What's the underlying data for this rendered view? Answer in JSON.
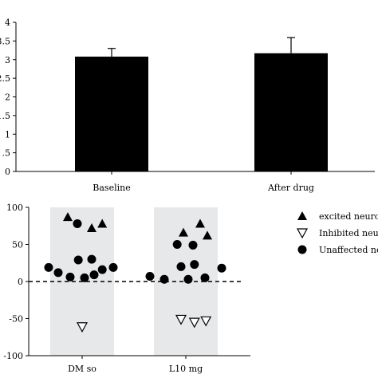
{
  "chart_data": [
    {
      "type": "bar",
      "title": "",
      "xlabel": "",
      "ylabel": "",
      "categories": [
        "Baseline",
        "After drug"
      ],
      "values": [
        3.08,
        3.17
      ],
      "errors": [
        0.22,
        0.42
      ],
      "ylim": [
        0,
        4
      ],
      "yticks": [
        0,
        0.5,
        1,
        1.5,
        2,
        2.5,
        3,
        3.5,
        4
      ],
      "ytick_labels": [
        "0",
        ".5",
        "1",
        "1.5",
        "2",
        "2.5",
        "3",
        "3.5",
        "4"
      ],
      "bar_color": "#000000",
      "grid": false
    },
    {
      "type": "scatter",
      "title": "",
      "xlabel": "",
      "ylabel": "",
      "categories": [
        "DM so",
        "L10 mg"
      ],
      "ylim": [
        -100,
        100
      ],
      "yticks": [
        -100,
        -50,
        0,
        50,
        100
      ],
      "ytick_labels": [
        "-100",
        "-50",
        "0",
        "50",
        "100"
      ],
      "zero_line": "dashed",
      "band_color": "#e6e8ea",
      "legend_position": "right",
      "legend": [
        {
          "label": "excited neuron",
          "marker": "filled-triangle"
        },
        {
          "label": "Inhibited neuro",
          "marker": "open-triangle-down"
        },
        {
          "label": "Unaffected neu",
          "marker": "filled-circle"
        }
      ],
      "series": [
        {
          "marker": "filled-triangle",
          "points": [
            {
              "category": 0,
              "offset": -0.3,
              "y": 87
            },
            {
              "category": 0,
              "offset": 0.2,
              "y": 72
            },
            {
              "category": 0,
              "offset": 0.42,
              "y": 78
            },
            {
              "category": 1,
              "offset": -0.05,
              "y": 66
            },
            {
              "category": 1,
              "offset": 0.3,
              "y": 78
            },
            {
              "category": 1,
              "offset": 0.45,
              "y": 62
            }
          ]
        },
        {
          "marker": "open-triangle-down",
          "points": [
            {
              "category": 0,
              "offset": 0.0,
              "y": -61
            },
            {
              "category": 1,
              "offset": -0.1,
              "y": -51
            },
            {
              "category": 1,
              "offset": 0.18,
              "y": -55
            },
            {
              "category": 1,
              "offset": 0.42,
              "y": -53
            }
          ]
        },
        {
          "marker": "filled-circle",
          "points": [
            {
              "category": 0,
              "offset": -0.7,
              "y": 19
            },
            {
              "category": 0,
              "offset": -0.5,
              "y": 12
            },
            {
              "category": 0,
              "offset": -0.25,
              "y": 6
            },
            {
              "category": 0,
              "offset": -0.1,
              "y": 78
            },
            {
              "category": 0,
              "offset": -0.08,
              "y": 29
            },
            {
              "category": 0,
              "offset": 0.05,
              "y": 5
            },
            {
              "category": 0,
              "offset": 0.2,
              "y": 30
            },
            {
              "category": 0,
              "offset": 0.25,
              "y": 9
            },
            {
              "category": 0,
              "offset": 0.42,
              "y": 16
            },
            {
              "category": 0,
              "offset": 0.65,
              "y": 19
            },
            {
              "category": 1,
              "offset": -0.75,
              "y": 7
            },
            {
              "category": 1,
              "offset": -0.45,
              "y": 3
            },
            {
              "category": 1,
              "offset": -0.18,
              "y": 50
            },
            {
              "category": 1,
              "offset": -0.1,
              "y": 20
            },
            {
              "category": 1,
              "offset": 0.05,
              "y": 3
            },
            {
              "category": 1,
              "offset": 0.15,
              "y": 49
            },
            {
              "category": 1,
              "offset": 0.18,
              "y": 23
            },
            {
              "category": 1,
              "offset": 0.4,
              "y": 5
            },
            {
              "category": 1,
              "offset": 0.75,
              "y": 18
            }
          ]
        }
      ]
    }
  ]
}
